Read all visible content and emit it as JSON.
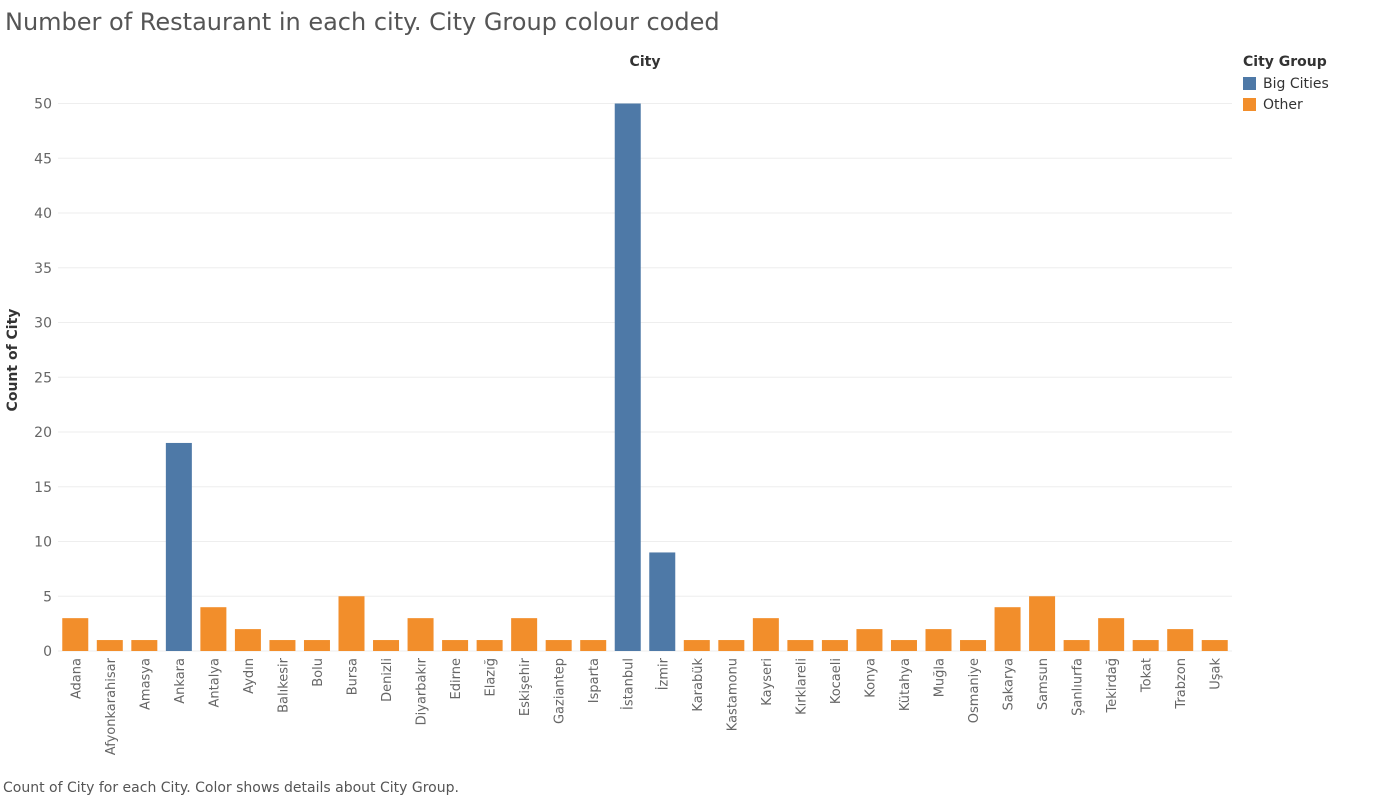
{
  "chart_data": {
    "type": "bar",
    "title": "Number of Restaurant in each city. City Group colour coded",
    "xlabel": "City",
    "ylabel": "Count of City",
    "ylim": [
      0,
      53
    ],
    "yticks": [
      0,
      5,
      10,
      15,
      20,
      25,
      30,
      35,
      40,
      45,
      50
    ],
    "grid": true,
    "legend": {
      "title": "City Group",
      "position": "top-right",
      "items": [
        {
          "label": "Big Cities",
          "color": "#4e79a7"
        },
        {
          "label": "Other",
          "color": "#f28e2b"
        }
      ]
    },
    "categories": [
      "Adana",
      "Afyonkarahisar",
      "Amasya",
      "Ankara",
      "Antalya",
      "Aydın",
      "Balıkesir",
      "Bolu",
      "Bursa",
      "Denizli",
      "Diyarbakır",
      "Edirne",
      "Elazığ",
      "Eskişehir",
      "Gaziantep",
      "Isparta",
      "İstanbul",
      "İzmir",
      "Karabük",
      "Kastamonu",
      "Kayseri",
      "Kırklareli",
      "Kocaeli",
      "Konya",
      "Kütahya",
      "Muğla",
      "Osmaniye",
      "Sakarya",
      "Samsun",
      "Şanlıurfa",
      "Tekirdağ",
      "Tokat",
      "Trabzon",
      "Uşak"
    ],
    "values": [
      3,
      1,
      1,
      19,
      4,
      2,
      1,
      1,
      5,
      1,
      3,
      1,
      1,
      3,
      1,
      1,
      50,
      9,
      1,
      1,
      3,
      1,
      1,
      2,
      1,
      2,
      1,
      4,
      5,
      1,
      3,
      1,
      2,
      1
    ],
    "groups": [
      "Other",
      "Other",
      "Other",
      "Big Cities",
      "Other",
      "Other",
      "Other",
      "Other",
      "Other",
      "Other",
      "Other",
      "Other",
      "Other",
      "Other",
      "Other",
      "Other",
      "Big Cities",
      "Big Cities",
      "Other",
      "Other",
      "Other",
      "Other",
      "Other",
      "Other",
      "Other",
      "Other",
      "Other",
      "Other",
      "Other",
      "Other",
      "Other",
      "Other",
      "Other",
      "Other"
    ]
  },
  "caption": "Count of City for each City.  Color shows details about City Group."
}
